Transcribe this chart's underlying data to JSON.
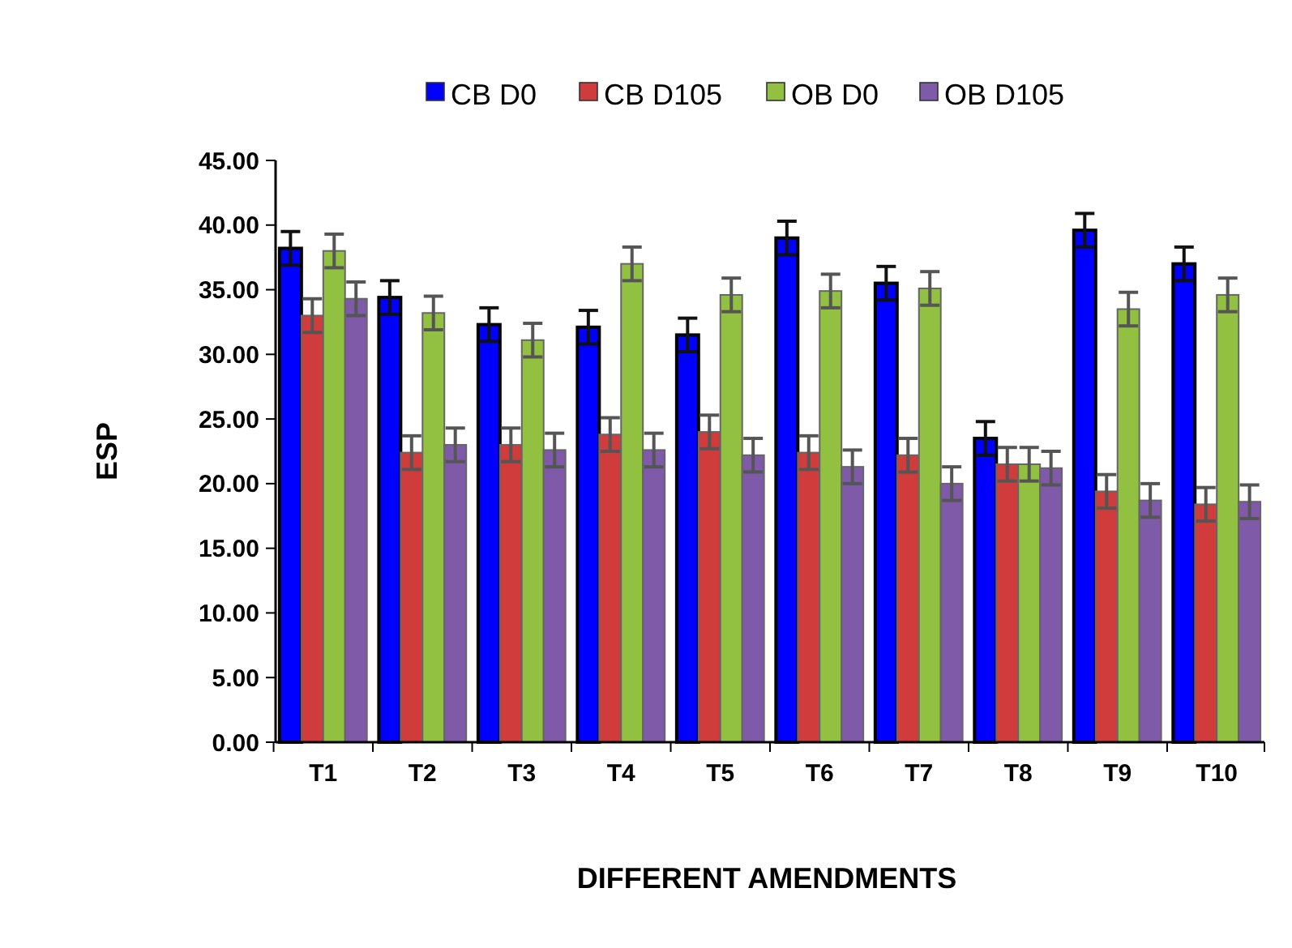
{
  "chart_data": {
    "type": "bar",
    "xlabel": "DIFFERENT AMENDMENTS",
    "ylabel": "ESP",
    "categories": [
      "T1",
      "T2",
      "T3",
      "T4",
      "T5",
      "T6",
      "T7",
      "T8",
      "T9",
      "T10"
    ],
    "series": [
      {
        "name": "CB D0",
        "color": "#0000ff",
        "values": [
          38.2,
          34.4,
          32.3,
          32.1,
          31.5,
          39.0,
          35.5,
          23.5,
          39.6,
          37.0
        ],
        "errors": [
          1.3,
          1.3,
          1.3,
          1.3,
          1.3,
          1.3,
          1.3,
          1.3,
          1.3,
          1.3
        ]
      },
      {
        "name": "CB D105",
        "color": "#d03b3b",
        "values": [
          33.0,
          22.4,
          23.0,
          23.8,
          24.0,
          22.4,
          22.2,
          21.5,
          19.4,
          18.4
        ],
        "errors": [
          1.3,
          1.3,
          1.3,
          1.3,
          1.3,
          1.3,
          1.3,
          1.3,
          1.3,
          1.3
        ]
      },
      {
        "name": "OB D0",
        "color": "#92c040",
        "values": [
          38.0,
          33.2,
          31.1,
          37.0,
          34.6,
          34.9,
          35.1,
          21.5,
          33.5,
          34.6
        ],
        "errors": [
          1.3,
          1.3,
          1.3,
          1.3,
          1.3,
          1.3,
          1.3,
          1.3,
          1.3,
          1.3
        ]
      },
      {
        "name": "OB D105",
        "color": "#7e5aa8",
        "values": [
          34.3,
          23.0,
          22.6,
          22.6,
          22.2,
          21.3,
          20.0,
          21.2,
          18.7,
          18.6
        ],
        "errors": [
          1.3,
          1.3,
          1.3,
          1.3,
          1.3,
          1.3,
          1.3,
          1.3,
          1.3,
          1.3
        ]
      }
    ],
    "ylim": [
      0,
      45
    ],
    "yticks": [
      {
        "value": 0,
        "label": "0.00"
      },
      {
        "value": 5,
        "label": "5.00"
      },
      {
        "value": 10,
        "label": "10.00"
      },
      {
        "value": 15,
        "label": "15.00"
      },
      {
        "value": 20,
        "label": "20.00"
      },
      {
        "value": 25,
        "label": "25.00"
      },
      {
        "value": 30,
        "label": "30.00"
      },
      {
        "value": 35,
        "label": "35.00"
      },
      {
        "value": 40,
        "label": "40.00"
      },
      {
        "value": 45,
        "label": "45.00"
      }
    ],
    "grid": false,
    "legend": "top"
  }
}
